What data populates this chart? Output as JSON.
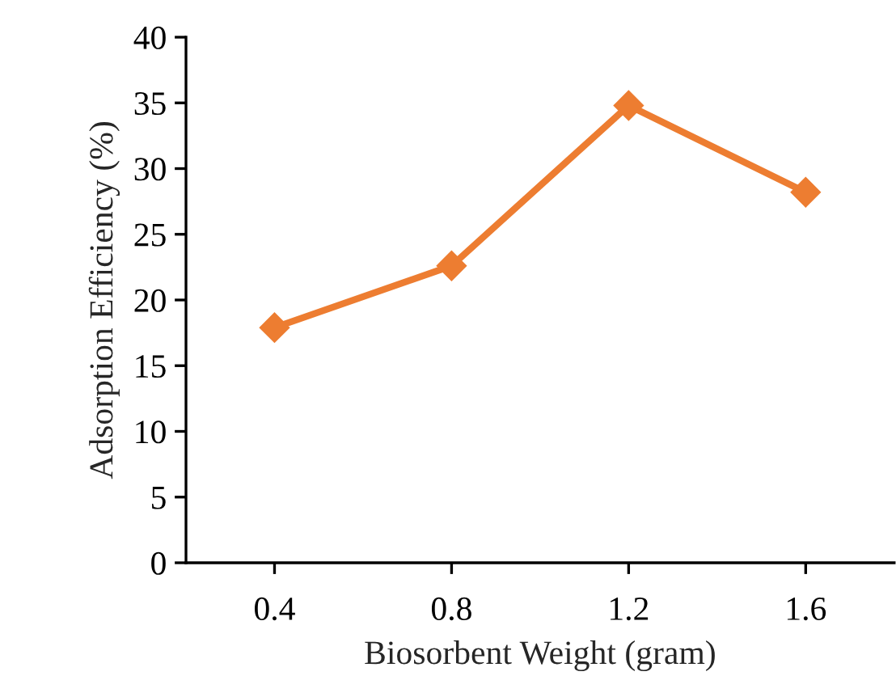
{
  "chart_data": {
    "type": "line",
    "xlabel": "Biosorbent Weight (gram)",
    "ylabel": "Adsorption Efficiency (%)",
    "categories": [
      "0.4",
      "0.8",
      "1.2",
      "1.6"
    ],
    "series": [
      {
        "color": "#ed7d31",
        "values": [
          17.9,
          22.6,
          34.8,
          28.2
        ]
      }
    ],
    "ylim": [
      0,
      40
    ],
    "yticks": [
      0,
      5,
      10,
      15,
      20,
      25,
      30,
      35,
      40
    ],
    "grid": false,
    "marker": "diamond",
    "line_style": "solid"
  }
}
